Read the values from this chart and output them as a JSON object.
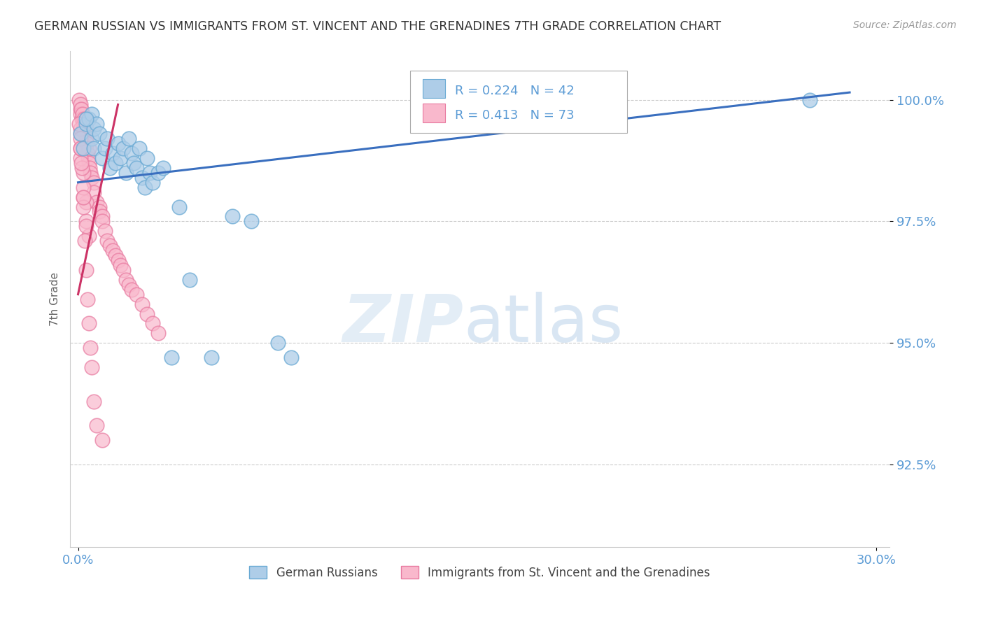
{
  "title": "GERMAN RUSSIAN VS IMMIGRANTS FROM ST. VINCENT AND THE GRENADINES 7TH GRADE CORRELATION CHART",
  "source": "Source: ZipAtlas.com",
  "ylabel": "7th Grade",
  "yticks": [
    92.5,
    95.0,
    97.5,
    100.0
  ],
  "ylim": [
    90.8,
    101.0
  ],
  "xlim": [
    -0.003,
    0.305
  ],
  "legend1_label": "R = 0.224   N = 42",
  "legend2_label": "R = 0.413   N = 73",
  "blue_color_fill": "#aecde8",
  "blue_color_edge": "#6aaad4",
  "pink_color_fill": "#f9b8cc",
  "pink_color_edge": "#e87aa0",
  "blue_trend_color": "#3a6fbf",
  "pink_trend_color": "#cc3366",
  "title_color": "#333333",
  "tick_color": "#5b9bd5",
  "ylabel_color": "#666666",
  "grid_color": "#cccccc",
  "blue_scatter_x": [
    0.001,
    0.002,
    0.003,
    0.004,
    0.005,
    0.005,
    0.006,
    0.006,
    0.007,
    0.008,
    0.009,
    0.01,
    0.011,
    0.012,
    0.013,
    0.014,
    0.015,
    0.016,
    0.017,
    0.018,
    0.019,
    0.02,
    0.021,
    0.022,
    0.023,
    0.024,
    0.025,
    0.026,
    0.027,
    0.028,
    0.03,
    0.032,
    0.035,
    0.038,
    0.042,
    0.05,
    0.058,
    0.065,
    0.075,
    0.08,
    0.275,
    0.003
  ],
  "blue_scatter_y": [
    99.3,
    99.0,
    99.5,
    99.6,
    99.7,
    99.2,
    99.4,
    99.0,
    99.5,
    99.3,
    98.8,
    99.0,
    99.2,
    98.6,
    98.9,
    98.7,
    99.1,
    98.8,
    99.0,
    98.5,
    99.2,
    98.9,
    98.7,
    98.6,
    99.0,
    98.4,
    98.2,
    98.8,
    98.5,
    98.3,
    98.5,
    98.6,
    94.7,
    97.8,
    96.3,
    94.7,
    97.6,
    97.5,
    95.0,
    94.7,
    100.0,
    99.6
  ],
  "pink_scatter_x": [
    0.0005,
    0.0008,
    0.001,
    0.001,
    0.0012,
    0.0015,
    0.0018,
    0.002,
    0.002,
    0.0022,
    0.0025,
    0.0028,
    0.003,
    0.003,
    0.003,
    0.0032,
    0.0035,
    0.0038,
    0.004,
    0.004,
    0.0042,
    0.0045,
    0.005,
    0.006,
    0.006,
    0.007,
    0.008,
    0.008,
    0.009,
    0.009,
    0.01,
    0.011,
    0.012,
    0.013,
    0.014,
    0.015,
    0.016,
    0.017,
    0.018,
    0.019,
    0.02,
    0.022,
    0.024,
    0.026,
    0.028,
    0.03,
    0.001,
    0.002,
    0.003,
    0.004,
    0.001,
    0.002,
    0.003,
    0.001,
    0.002,
    0.001,
    0.0015,
    0.002,
    0.0025,
    0.003,
    0.0035,
    0.004,
    0.0045,
    0.005,
    0.006,
    0.007,
    0.009,
    0.0005,
    0.0008,
    0.001,
    0.0012,
    0.002,
    0.003
  ],
  "pink_scatter_y": [
    100.0,
    99.8,
    99.9,
    99.7,
    99.8,
    99.6,
    99.7,
    99.5,
    99.4,
    99.6,
    99.5,
    99.3,
    99.2,
    99.4,
    99.6,
    99.1,
    98.9,
    98.8,
    99.0,
    98.7,
    98.6,
    98.5,
    98.4,
    98.3,
    98.1,
    97.9,
    97.8,
    97.7,
    97.6,
    97.5,
    97.3,
    97.1,
    97.0,
    96.9,
    96.8,
    96.7,
    96.6,
    96.5,
    96.3,
    96.2,
    96.1,
    96.0,
    95.8,
    95.6,
    95.4,
    95.2,
    99.3,
    98.5,
    97.9,
    97.2,
    98.8,
    98.0,
    97.5,
    99.0,
    98.2,
    99.4,
    98.6,
    97.8,
    97.1,
    96.5,
    95.9,
    95.4,
    94.9,
    94.5,
    93.8,
    93.3,
    93.0,
    99.5,
    99.2,
    99.0,
    98.7,
    98.0,
    97.4
  ],
  "blue_trend_x": [
    0.0,
    0.29
  ],
  "blue_trend_y": [
    98.3,
    100.15
  ],
  "pink_trend_x": [
    0.0,
    0.015
  ],
  "pink_trend_y": [
    96.0,
    99.9
  ]
}
